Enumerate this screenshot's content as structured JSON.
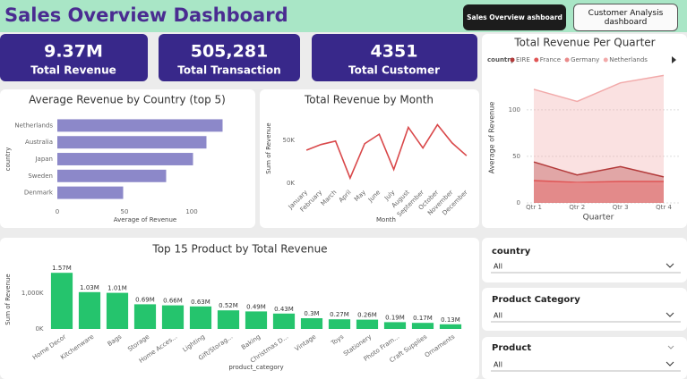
{
  "header": {
    "title": "Sales Overview Dashboard",
    "buttons": [
      "Sales Overview ashboard",
      "Customer Analysis dashboard"
    ]
  },
  "kpis": [
    {
      "value": "9.37M",
      "label": "Total Revenue"
    },
    {
      "value": "505,281",
      "label": "Total Transaction"
    },
    {
      "value": "4351",
      "label": "Total Customer"
    }
  ],
  "chart_data": [
    {
      "type": "barh",
      "title": "Average Revenue by Country (top 5)",
      "x_label": "Average of Revenue",
      "y_label": "country",
      "categories": [
        "Netherlands",
        "Australia",
        "Japan",
        "Sweden",
        "Denmark"
      ],
      "values": [
        123,
        111,
        101,
        81,
        49
      ],
      "color": "#8c88c9",
      "xlim": [
        0,
        130
      ],
      "xticks": [
        0,
        50,
        100
      ]
    },
    {
      "type": "line",
      "title": "Total Revenue by Month",
      "x_label": "Month",
      "y_label": "Sum of Revenue",
      "categories": [
        "January",
        "February",
        "March",
        "April",
        "May",
        "June",
        "July",
        "August",
        "September",
        "October",
        "November",
        "December"
      ],
      "values": [
        38500,
        45000,
        49000,
        6000,
        46000,
        57000,
        16000,
        65000,
        41000,
        68000,
        47000,
        32000
      ],
      "color": "#d9484a",
      "ylim": [
        0,
        80000
      ],
      "yticks": [
        {
          "value": 0,
          "label": "0K"
        },
        {
          "value": 50000,
          "label": "50K"
        }
      ]
    },
    {
      "type": "area",
      "title": "Total Revenue Per Quarter",
      "x_label": "Quarter",
      "y_label": "Average of Revenue",
      "legend_title": "country",
      "categories": [
        "Qtr 1",
        "Qtr 2",
        "Qtr 3",
        "Qtr 4"
      ],
      "series": [
        {
          "name": "EIRE",
          "color": "#b33a3a",
          "values": [
            44,
            30,
            39,
            28
          ]
        },
        {
          "name": "France",
          "color": "#e05555",
          "values": [
            24,
            22,
            23,
            23
          ]
        },
        {
          "name": "Germany",
          "color": "#e98a8a",
          "values": [
            21,
            21,
            21,
            20
          ]
        },
        {
          "name": "Netherlands",
          "color": "#f2aaaa",
          "values": [
            122,
            109,
            129,
            137
          ]
        }
      ],
      "ylim": [
        0,
        145
      ],
      "yticks": [
        0,
        50,
        100
      ],
      "grid": true
    },
    {
      "type": "bar",
      "title": "Top 15 Product by Total Revenue",
      "x_label": "product_category",
      "y_label": "Sum of Revenue",
      "categories": [
        "Home Decor",
        "Kitchenware",
        "Bags",
        "Storage",
        "Home Acces...",
        "Lighting",
        "Gift/Storag...",
        "Baking",
        "Christmas D...",
        "Vintage",
        "Toys",
        "Stationery",
        "Photo Fram...",
        "Craft Supplies",
        "Ornaments"
      ],
      "values": [
        1570000,
        1030000,
        1010000,
        690000,
        660000,
        630000,
        520000,
        490000,
        430000,
        300000,
        270000,
        260000,
        190000,
        170000,
        130000
      ],
      "value_labels": [
        "1.57M",
        "1.03M",
        "1.01M",
        "0.69M",
        "0.66M",
        "0.63M",
        "0.52M",
        "0.49M",
        "0.43M",
        "0.3M",
        "0.27M",
        "0.26M",
        "0.19M",
        "0.17M",
        "0.13M"
      ],
      "color": "#25c46d",
      "ylim": [
        0,
        1700000
      ],
      "yticks": [
        {
          "value": 0,
          "label": "0K"
        },
        {
          "value": 1000000,
          "label": "1,000K"
        }
      ]
    }
  ],
  "filters": [
    {
      "label": "country",
      "value": "All"
    },
    {
      "label": "Product Category",
      "value": "All"
    },
    {
      "label": "Product",
      "value": "All"
    }
  ]
}
